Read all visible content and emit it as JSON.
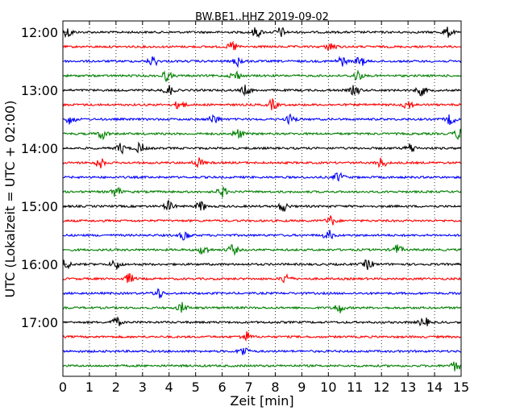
{
  "chart_data": {
    "type": "line",
    "title": "BW.BE1..HHZ 2019-09-02",
    "xlabel": "Zeit  [min]",
    "ylabel": "UTC (Lokalzeit = UTC + 02:00)",
    "xlim": [
      0,
      15
    ],
    "x_ticks": [
      "0",
      "1",
      "2",
      "3",
      "4",
      "5",
      "6",
      "7",
      "8",
      "9",
      "10",
      "11",
      "12",
      "13",
      "14",
      "15"
    ],
    "grid": "vertical dotted at each minute",
    "trace_interval_minutes": 15,
    "first_trace_utc": "12:00",
    "y_tick_labels": [
      "12:00",
      "13:00",
      "14:00",
      "15:00",
      "16:00",
      "17:00"
    ],
    "colors": [
      "#000000",
      "#ff0000",
      "#0000ff",
      "#008000"
    ],
    "series": [
      {
        "values": [
          0.2,
          7.3,
          8.2,
          14.5
        ]
      },
      {
        "values": [
          6.4,
          10.1
        ]
      },
      {
        "values": [
          3.4,
          6.6,
          10.5,
          11.2
        ]
      },
      {
        "values": [
          3.9,
          6.5,
          11.1
        ]
      },
      {
        "values": [
          4.0,
          6.9,
          11.0,
          13.5
        ]
      },
      {
        "values": [
          4.4,
          7.9,
          13.0
        ]
      },
      {
        "values": [
          0.3,
          5.7,
          8.6,
          14.6
        ]
      },
      {
        "values": [
          1.5,
          6.6,
          14.9
        ]
      },
      {
        "values": [
          2.2,
          2.9,
          13.1
        ]
      },
      {
        "values": [
          1.4,
          5.1,
          12.0
        ]
      },
      {
        "values": [
          10.4
        ]
      },
      {
        "values": [
          2.0,
          6.0
        ]
      },
      {
        "values": [
          4.0,
          5.2,
          8.3
        ]
      },
      {
        "values": [
          10.1
        ]
      },
      {
        "values": [
          4.6,
          10.0
        ]
      },
      {
        "values": [
          5.3,
          6.4,
          12.6
        ]
      },
      {
        "values": [
          0.1,
          2.0,
          11.5
        ]
      },
      {
        "values": [
          2.5,
          8.4
        ]
      },
      {
        "values": [
          3.6
        ]
      },
      {
        "values": [
          4.5,
          10.4
        ]
      },
      {
        "values": [
          2.0,
          13.6
        ]
      },
      {
        "values": [
          6.9
        ]
      },
      {
        "values": [
          6.8
        ]
      },
      {
        "values": [
          14.8
        ]
      }
    ]
  }
}
